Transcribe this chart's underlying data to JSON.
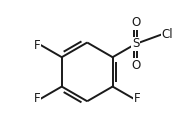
{
  "background_color": "#ffffff",
  "bond_color": "#1a1a1a",
  "text_color": "#1a1a1a",
  "line_width": 1.4,
  "font_size": 7.5,
  "fig_width": 1.92,
  "fig_height": 1.32,
  "dpi": 100,
  "labels": {
    "F_top_left": "F",
    "F_mid_left": "F",
    "F_bottom_right": "F",
    "S": "S",
    "O_top": "O",
    "O_bottom": "O",
    "Cl": "Cl"
  },
  "xlim": [
    -2.2,
    2.8
  ],
  "ylim": [
    -2.0,
    2.4
  ]
}
